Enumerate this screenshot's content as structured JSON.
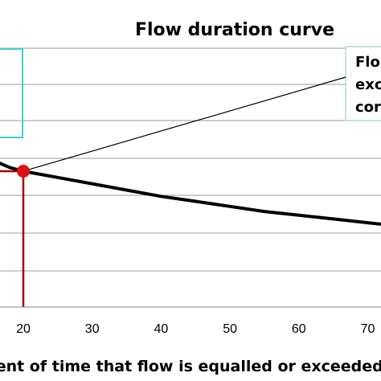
{
  "chart_data": {
    "type": "line",
    "title": "Flow duration curve",
    "xlabel": "Percent of time that flow is equalled or exceeded",
    "x_ticks": [
      "20",
      "30",
      "40",
      "50",
      "60",
      "70"
    ],
    "xlim": [
      10,
      80
    ],
    "grid": true,
    "series": [
      {
        "x": [
          10,
          12,
          15,
          18,
          20,
          22,
          25,
          30,
          35,
          40,
          45,
          50,
          55,
          60,
          65,
          70,
          75,
          80
        ],
        "y": [
          0.67,
          0.63,
          0.59,
          0.555,
          0.54,
          0.53,
          0.515,
          0.49,
          0.465,
          0.44,
          0.42,
          0.4,
          0.38,
          0.365,
          0.35,
          0.335,
          0.32,
          0.31
        ],
        "color": "#000000"
      }
    ],
    "marker": {
      "x": 20,
      "y": 0.54,
      "color": "#dd1111"
    },
    "callout_lines": [
      "Flo",
      "exc",
      "cor"
    ],
    "colors": {
      "guide_red": "#aa0000",
      "guide_cyan": "#40d0d0",
      "grid": "#999999"
    }
  }
}
